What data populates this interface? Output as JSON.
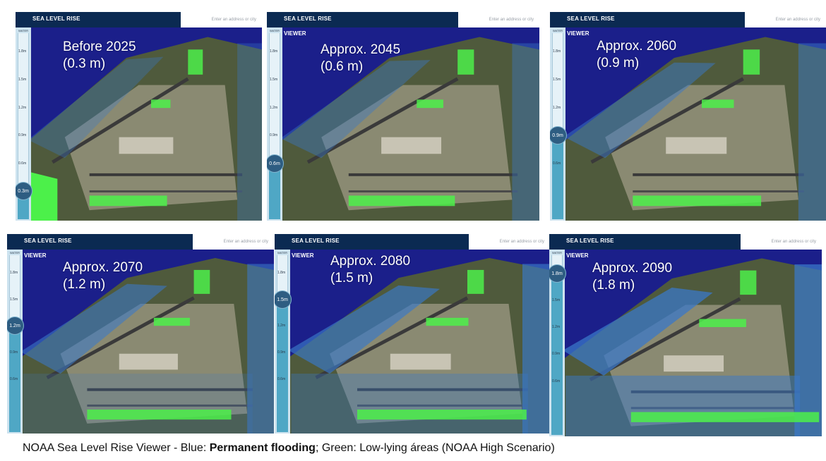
{
  "app": {
    "title": "SEA LEVEL RISE",
    "search_placeholder": "Enter an address or city",
    "viewer_label": "VIEWER",
    "sidebar_title": "WATER LEVEL"
  },
  "colors": {
    "ocean": "#1b1f8a",
    "flood_blue": "#3a78c8",
    "low_lying_green": "#4cf04a",
    "header": "#0b2a52",
    "slider_fill": "#4fa7c5"
  },
  "panels": [
    {
      "year_label": "Before 2025",
      "level_label": "(0.3 m)",
      "knob_value": "0.3m",
      "level_m": 0.3,
      "ticks": [
        "1.8m",
        "1.5m",
        "1.2m",
        "0.9m",
        "0.6m"
      ]
    },
    {
      "year_label": "Approx. 2045",
      "level_label": "(0.6 m)",
      "knob_value": "0.6m",
      "level_m": 0.6,
      "ticks": [
        "1.8m",
        "1.5m",
        "1.2m",
        "0.9m"
      ]
    },
    {
      "year_label": "Approx. 2060",
      "level_label": "(0.9 m)",
      "knob_value": "0.9m",
      "level_m": 0.9,
      "ticks": [
        "1.8m",
        "1.5m",
        "1.2m",
        "0.6m"
      ]
    },
    {
      "year_label": "Approx. 2070",
      "level_label": "(1.2 m)",
      "knob_value": "1.2m",
      "level_m": 1.2,
      "ticks": [
        "1.8m",
        "1.5m",
        "0.9m",
        "0.6m"
      ]
    },
    {
      "year_label": "Approx. 2080",
      "level_label": "(1.5 m)",
      "knob_value": "1.5m",
      "level_m": 1.5,
      "ticks": [
        "1.8m",
        "1.2m",
        "0.9m",
        "0.6m"
      ]
    },
    {
      "year_label": "Approx. 2090",
      "level_label": "(1.8 m)",
      "knob_value": "1.8m",
      "level_m": 1.8,
      "ticks": [
        "1.5m",
        "1.2m",
        "0.9m",
        "0.6m"
      ]
    }
  ],
  "caption": {
    "prefix": "NOAA Sea Level Rise Viewer - Blue: ",
    "bold": "Permanent flooding",
    "suffix": "; Green: Low-lying áreas (NOAA High Scenario)"
  }
}
